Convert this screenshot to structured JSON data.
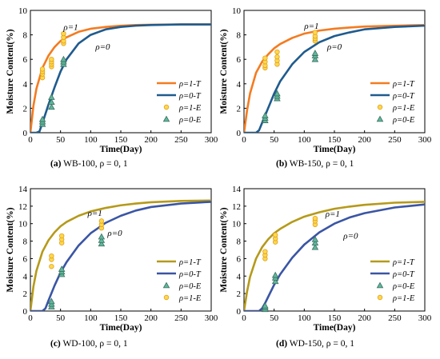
{
  "figure": {
    "panels": [
      {
        "caption_label": "(a)",
        "caption_text": "WB-100, ρ = 0, 1",
        "ylabel": "Moisture Content(%)",
        "xlabel": "Time(Day)",
        "xlim": [
          0,
          300
        ],
        "ylim": [
          0,
          10
        ],
        "xticks": [
          "0",
          "50",
          "100",
          "150",
          "200",
          "250",
          "300"
        ],
        "yticks": [
          "0",
          "2",
          "4",
          "6",
          "8",
          "10"
        ],
        "curve_labels": [
          {
            "text": "ρ=1",
            "x": 55,
            "y": 8.4
          },
          {
            "text": "ρ=0",
            "x": 108,
            "y": 6.8
          }
        ],
        "legend": [
          "ρ=1-T",
          "ρ=0-T",
          "ρ=1-E",
          "ρ=0-E"
        ]
      },
      {
        "caption_label": "(b)",
        "caption_text": "WB-150, ρ = 0, 1",
        "ylabel": "Moisture Content(%)",
        "xlabel": "Time(Day)",
        "xlim": [
          0,
          300
        ],
        "ylim": [
          0,
          10
        ],
        "xticks": [
          "0",
          "50",
          "100",
          "150",
          "200",
          "250",
          "300"
        ],
        "yticks": [
          "0",
          "2",
          "4",
          "6",
          "8",
          "10"
        ],
        "curve_labels": [
          {
            "text": "ρ=1",
            "x": 100,
            "y": 8.5
          },
          {
            "text": "ρ=0",
            "x": 138,
            "y": 6.8
          }
        ],
        "legend": [
          "ρ=1-T",
          "ρ=0-T",
          "ρ=1-E",
          "ρ=0-E"
        ]
      },
      {
        "caption_label": "(c)",
        "caption_text": "WD-100, ρ = 0, 1",
        "ylabel": "Moisture Content(%)",
        "xlabel": "Time(Day)",
        "xlim": [
          0,
          300
        ],
        "ylim": [
          0,
          14
        ],
        "xticks": [
          "0",
          "50",
          "100",
          "150",
          "200",
          "250",
          "300"
        ],
        "yticks": [
          "0",
          "2",
          "4",
          "6",
          "8",
          "10",
          "12",
          "14"
        ],
        "curve_labels": [
          {
            "text": "ρ=1",
            "x": 95,
            "y": 10.9
          },
          {
            "text": "ρ=0",
            "x": 128,
            "y": 8.6
          }
        ],
        "legend": [
          "ρ=1-T",
          "ρ=0-T",
          "ρ=0-E",
          "ρ=1-E"
        ]
      },
      {
        "caption_label": "(d)",
        "caption_text": "WD-150, ρ = 0, 1",
        "ylabel": "Moisture Content(%)",
        "xlabel": "Time(Day)",
        "xlim": [
          0,
          300
        ],
        "ylim": [
          0,
          14
        ],
        "xticks": [
          "0",
          "50",
          "100",
          "150",
          "200",
          "250",
          "300"
        ],
        "yticks": [
          "0",
          "2",
          "4",
          "6",
          "8",
          "10",
          "12",
          "14"
        ],
        "curve_labels": [
          {
            "text": "ρ=1",
            "x": 135,
            "y": 10.8
          },
          {
            "text": "ρ=0",
            "x": 165,
            "y": 8.3
          }
        ],
        "legend": [
          "ρ=1-T",
          "ρ=0-T",
          "ρ=0-E",
          "ρ=1-E"
        ]
      }
    ]
  },
  "colors": {
    "orange": "#f47b20",
    "navy": "#1f5b8e",
    "olive": "#b59a1a",
    "blue": "#3a55a4",
    "marker_yellow": "#ffd84a",
    "marker_edge": "#e0a020",
    "marker_green": "#5fb89a",
    "marker_green_edge": "#3b6e62"
  },
  "chart_data": [
    {
      "type": "line",
      "title": "WB-100, ρ = 0, 1",
      "xlabel": "Time(Day)",
      "ylabel": "Moisture Content(%)",
      "xlim": [
        0,
        300
      ],
      "ylim": [
        0,
        10
      ],
      "grid": false,
      "legend": "right",
      "series": [
        {
          "name": "ρ=1-T",
          "kind": "line",
          "color": "#f47b20",
          "x": [
            0,
            5,
            10,
            20,
            30,
            40,
            50,
            60,
            80,
            100,
            125,
            150,
            175,
            200,
            250,
            300
          ],
          "y": [
            0,
            2.2,
            3.6,
            5.3,
            6.3,
            7.0,
            7.5,
            7.8,
            8.25,
            8.5,
            8.65,
            8.75,
            8.8,
            8.83,
            8.85,
            8.85
          ]
        },
        {
          "name": "ρ=0-T",
          "kind": "line",
          "color": "#1f5b8e",
          "x": [
            0,
            10,
            15,
            20,
            30,
            40,
            50,
            60,
            80,
            100,
            125,
            150,
            175,
            200,
            250,
            300
          ],
          "y": [
            0,
            0,
            0.1,
            0.8,
            2.3,
            3.7,
            5.0,
            6.0,
            7.3,
            8.0,
            8.45,
            8.65,
            8.75,
            8.8,
            8.85,
            8.85
          ]
        },
        {
          "name": "ρ=1-E",
          "kind": "scatter",
          "color": "#ffd84a",
          "x": [
            20,
            20,
            20,
            20,
            35,
            35,
            35,
            35,
            55,
            55,
            55,
            55
          ],
          "y": [
            4.5,
            4.8,
            5.0,
            5.2,
            5.4,
            5.6,
            5.8,
            6.0,
            7.3,
            7.5,
            7.8,
            8.1
          ]
        },
        {
          "name": "ρ=0-E",
          "kind": "scatter",
          "color": "#5fb89a",
          "x": [
            20,
            20,
            20,
            35,
            35,
            35,
            55,
            55,
            55
          ],
          "y": [
            0.7,
            0.9,
            1.1,
            2.1,
            2.5,
            2.9,
            5.6,
            5.8,
            6.0
          ]
        }
      ]
    },
    {
      "type": "line",
      "title": "WB-150, ρ = 0, 1",
      "xlabel": "Time(Day)",
      "ylabel": "Moisture Content(%)",
      "xlim": [
        0,
        300
      ],
      "ylim": [
        0,
        10
      ],
      "grid": false,
      "legend": "right",
      "series": [
        {
          "name": "ρ=1-T",
          "kind": "line",
          "color": "#f47b20",
          "x": [
            0,
            5,
            10,
            20,
            30,
            40,
            50,
            60,
            80,
            100,
            125,
            150,
            175,
            200,
            250,
            300
          ],
          "y": [
            0,
            1.8,
            3.2,
            4.9,
            5.8,
            6.4,
            6.9,
            7.25,
            7.75,
            8.1,
            8.35,
            8.5,
            8.6,
            8.68,
            8.75,
            8.8
          ]
        },
        {
          "name": "ρ=0-T",
          "kind": "line",
          "color": "#1f5b8e",
          "x": [
            0,
            20,
            25,
            30,
            40,
            50,
            60,
            80,
            100,
            125,
            150,
            175,
            200,
            250,
            300
          ],
          "y": [
            0,
            0,
            0.2,
            0.8,
            2.0,
            3.2,
            4.2,
            5.6,
            6.6,
            7.4,
            7.9,
            8.2,
            8.45,
            8.65,
            8.75
          ]
        },
        {
          "name": "ρ=1-E",
          "kind": "scatter",
          "color": "#ffd84a",
          "x": [
            35,
            35,
            35,
            35,
            55,
            55,
            55,
            55,
            118,
            118,
            118,
            118
          ],
          "y": [
            5.3,
            5.5,
            5.8,
            6.1,
            5.6,
            5.9,
            6.2,
            6.6,
            7.5,
            7.7,
            7.9,
            8.2
          ]
        },
        {
          "name": "ρ=0-E",
          "kind": "scatter",
          "color": "#5fb89a",
          "x": [
            35,
            35,
            35,
            55,
            55,
            55,
            118,
            118,
            118
          ],
          "y": [
            1.0,
            1.2,
            1.4,
            2.8,
            3.0,
            3.2,
            6.0,
            6.3,
            6.5
          ]
        }
      ]
    },
    {
      "type": "line",
      "title": "WD-100, ρ = 0, 1",
      "xlabel": "Time(Day)",
      "ylabel": "Moisture Content(%)",
      "xlim": [
        0,
        300
      ],
      "ylim": [
        0,
        14
      ],
      "grid": false,
      "legend": "right",
      "series": [
        {
          "name": "ρ=1-T",
          "kind": "line",
          "color": "#b59a1a",
          "x": [
            0,
            5,
            10,
            20,
            30,
            40,
            50,
            60,
            80,
            100,
            125,
            150,
            175,
            200,
            250,
            300
          ],
          "y": [
            0,
            2.8,
            4.6,
            6.8,
            8.1,
            9.0,
            9.7,
            10.2,
            10.9,
            11.4,
            11.8,
            12.1,
            12.3,
            12.45,
            12.6,
            12.65
          ]
        },
        {
          "name": "ρ=0-T",
          "kind": "line",
          "color": "#3a55a4",
          "x": [
            0,
            20,
            25,
            30,
            40,
            50,
            60,
            80,
            100,
            125,
            150,
            175,
            200,
            250,
            300
          ],
          "y": [
            0,
            0,
            0.3,
            1.2,
            2.9,
            4.4,
            5.6,
            7.5,
            8.9,
            10.1,
            10.9,
            11.5,
            11.9,
            12.3,
            12.5
          ]
        },
        {
          "name": "ρ=0-E",
          "kind": "scatter",
          "color": "#5fb89a",
          "x": [
            35,
            35,
            35,
            52,
            52,
            52,
            118,
            118,
            118
          ],
          "y": [
            0.5,
            0.8,
            1.1,
            4.2,
            4.5,
            4.8,
            7.7,
            8.1,
            8.5
          ]
        },
        {
          "name": "ρ=1-E",
          "kind": "scatter",
          "color": "#ffd84a",
          "x": [
            35,
            35,
            35,
            52,
            52,
            52,
            118,
            118,
            118
          ],
          "y": [
            5.1,
            5.9,
            6.3,
            7.8,
            8.2,
            8.6,
            9.5,
            9.9,
            10.3
          ]
        }
      ]
    },
    {
      "type": "line",
      "title": "WD-150, ρ = 0, 1",
      "xlabel": "Time(Day)",
      "ylabel": "Moisture Content(%)",
      "xlim": [
        0,
        300
      ],
      "ylim": [
        0,
        14
      ],
      "grid": false,
      "legend": "right",
      "series": [
        {
          "name": "ρ=1-T",
          "kind": "line",
          "color": "#b59a1a",
          "x": [
            0,
            5,
            10,
            20,
            30,
            40,
            50,
            60,
            80,
            100,
            125,
            150,
            175,
            200,
            250,
            300
          ],
          "y": [
            0,
            2.2,
            3.9,
            6.0,
            7.3,
            8.2,
            8.9,
            9.4,
            10.2,
            10.8,
            11.3,
            11.7,
            11.95,
            12.15,
            12.4,
            12.5
          ]
        },
        {
          "name": "ρ=0-T",
          "kind": "line",
          "color": "#3a55a4",
          "x": [
            0,
            25,
            30,
            35,
            40,
            50,
            60,
            80,
            100,
            125,
            150,
            175,
            200,
            250,
            300
          ],
          "y": [
            0,
            0,
            0.3,
            0.9,
            1.6,
            3.0,
            4.2,
            6.1,
            7.6,
            9.0,
            10.0,
            10.7,
            11.2,
            11.85,
            12.2
          ]
        },
        {
          "name": "ρ=0-E",
          "kind": "scatter",
          "color": "#5fb89a",
          "x": [
            35,
            35,
            35,
            52,
            52,
            52,
            118,
            118,
            118
          ],
          "y": [
            0.2,
            0.4,
            0.6,
            3.4,
            3.8,
            4.1,
            7.3,
            7.8,
            8.2
          ]
        },
        {
          "name": "ρ=1-E",
          "kind": "scatter",
          "color": "#ffd84a",
          "x": [
            35,
            35,
            35,
            52,
            52,
            52,
            118,
            118,
            118
          ],
          "y": [
            6.0,
            6.4,
            6.8,
            7.9,
            8.3,
            8.7,
            9.9,
            10.3,
            10.6
          ]
        }
      ]
    }
  ]
}
